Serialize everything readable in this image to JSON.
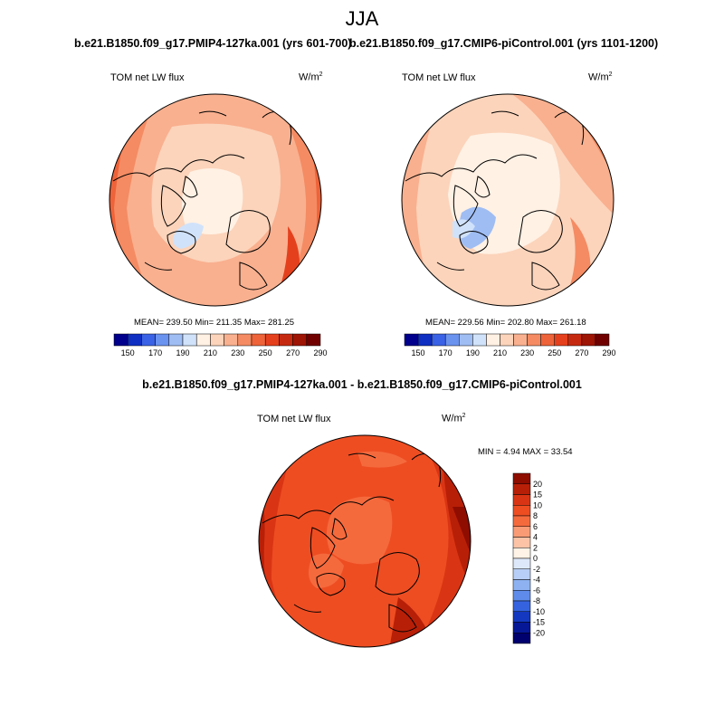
{
  "figure": {
    "season": "JJA",
    "panels": [
      {
        "case_title": "b.e21.B1850.f09_g17.PMIP4-127ka.001 (yrs 601-700)",
        "variable": "TOM net LW flux",
        "units": "W/m",
        "units_exp": "2",
        "stats": "MEAN= 239.50  Min= 211.35  Max= 281.25"
      },
      {
        "case_title": "b.e21.B1850.f09_g17.CMIP6-piControl.001 (yrs 1101-1200)",
        "variable": "TOM net LW flux",
        "units": "W/m",
        "units_exp": "2",
        "stats": "MEAN= 229.56  Min= 202.80  Max= 261.18"
      }
    ],
    "abs_colorbar": {
      "labels": [
        "150",
        "170",
        "190",
        "210",
        "230",
        "250",
        "270",
        "290"
      ],
      "colors": [
        "#00008c",
        "#0f2fc2",
        "#3a62e6",
        "#6a92ef",
        "#9fbdf3",
        "#d0e2fa",
        "#fff1e4",
        "#fcd4bb",
        "#f9b08f",
        "#f48b63",
        "#ee6339",
        "#e5401d",
        "#c52a10",
        "#9e1405",
        "#700000"
      ]
    },
    "diff_panel": {
      "title": "b.e21.B1850.f09_g17.PMIP4-127ka.001 - b.e21.B1850.f09_g17.CMIP6-piControl.001",
      "variable": "TOM net LW flux",
      "units": "W/m",
      "units_exp": "2",
      "stats": "MIN =   4.94 MAX =  33.54"
    },
    "diff_colorbar": {
      "labels": [
        "20",
        "15",
        "10",
        "8",
        "6",
        "4",
        "2",
        "0",
        "-2",
        "-4",
        "-6",
        "-8",
        "-10",
        "-15",
        "-20"
      ],
      "colors": [
        "#8e0d00",
        "#b81f07",
        "#d93514",
        "#ee4d22",
        "#f56a3d",
        "#f99b75",
        "#fcc3a6",
        "#fff2e6",
        "#dde9fa",
        "#b7cef6",
        "#8eb2f1",
        "#5f8cea",
        "#3563e0",
        "#1438bf",
        "#061896",
        "#00006e"
      ]
    }
  }
}
